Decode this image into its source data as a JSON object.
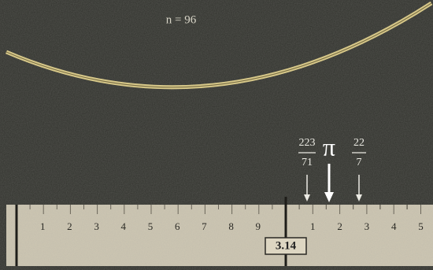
{
  "caption": "n = 96",
  "markers": [
    {
      "numerator": "223",
      "denominator": "71"
    },
    {
      "symbol": "π"
    },
    {
      "numerator": "22",
      "denominator": "7"
    }
  ],
  "ruler": {
    "left_labels": [
      "1",
      "2",
      "3",
      "4",
      "5",
      "6",
      "7",
      "8",
      "9"
    ],
    "right_labels": [
      "1",
      "2",
      "3",
      "4",
      "5"
    ],
    "readout": "3.14"
  }
}
